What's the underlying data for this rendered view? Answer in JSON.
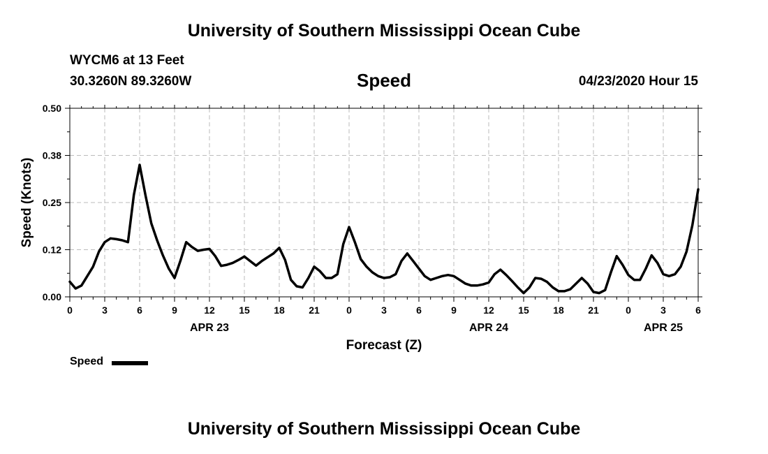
{
  "header": {
    "title": "University of Southern Mississippi Ocean Cube",
    "station": "WYCM6 at 13 Feet",
    "coordinates": "30.3260N 89.3260W",
    "variable": "Speed",
    "datetime": "04/23/2020 Hour 15"
  },
  "footer": {
    "title": "University of Southern Mississippi Ocean Cube"
  },
  "legend": {
    "label": "Speed",
    "color": "#000000"
  },
  "chart_data": {
    "type": "line",
    "title": "Speed",
    "xlabel": "Forecast (Z)",
    "ylabel": "Speed (Knots)",
    "xlim": [
      0,
      54
    ],
    "ylim": [
      0,
      0.5
    ],
    "yticks": [
      "0.00",
      "0.12",
      "0.25",
      "0.38",
      "0.50"
    ],
    "ytick_values": [
      0,
      0.125,
      0.25,
      0.375,
      0.5
    ],
    "xtick_labels": [
      "0",
      "3",
      "6",
      "9",
      "12",
      "15",
      "18",
      "21",
      "0",
      "3",
      "6",
      "9",
      "12",
      "15",
      "18",
      "21",
      "0",
      "3",
      "6"
    ],
    "date_labels": [
      {
        "label": "APR 23",
        "x": 12
      },
      {
        "label": "APR 24",
        "x": 36
      },
      {
        "label": "APR 25",
        "x": 51
      }
    ],
    "grid": true,
    "series": [
      {
        "name": "Speed",
        "color": "#000000",
        "x": [
          0,
          0.5,
          1,
          1.5,
          2,
          2.5,
          3,
          3.5,
          4,
          4.5,
          5,
          5.5,
          6,
          6.5,
          7,
          7.5,
          8,
          8.5,
          9,
          9.5,
          10,
          10.5,
          11,
          11.5,
          12,
          12.5,
          13,
          13.5,
          14,
          14.5,
          15,
          15.5,
          16,
          16.5,
          17,
          17.5,
          18,
          18.5,
          19,
          19.5,
          20,
          20.5,
          21,
          21.5,
          22,
          22.5,
          23,
          23.5,
          24,
          24.5,
          25,
          25.5,
          26,
          26.5,
          27,
          27.5,
          28,
          28.5,
          29,
          29.5,
          30,
          30.5,
          31,
          31.5,
          32,
          32.5,
          33,
          33.5,
          34,
          34.5,
          35,
          35.5,
          36,
          36.5,
          37,
          37.5,
          38,
          38.5,
          39,
          39.5,
          40,
          40.5,
          41,
          41.5,
          42,
          42.5,
          43,
          43.5,
          44,
          44.5,
          45,
          45.5,
          46,
          46.5,
          47,
          47.5,
          48,
          48.5,
          49,
          49.5,
          50,
          50.5,
          51,
          51.5,
          52,
          52.5,
          53,
          53.5,
          54
        ],
        "values": [
          0.04,
          0.022,
          0.03,
          0.055,
          0.08,
          0.12,
          0.145,
          0.155,
          0.153,
          0.15,
          0.145,
          0.27,
          0.35,
          0.27,
          0.195,
          0.15,
          0.11,
          0.075,
          0.05,
          0.095,
          0.145,
          0.132,
          0.122,
          0.125,
          0.127,
          0.108,
          0.082,
          0.085,
          0.09,
          0.098,
          0.107,
          0.095,
          0.083,
          0.095,
          0.105,
          0.115,
          0.13,
          0.098,
          0.045,
          0.028,
          0.025,
          0.05,
          0.08,
          0.068,
          0.05,
          0.05,
          0.06,
          0.14,
          0.185,
          0.145,
          0.1,
          0.08,
          0.065,
          0.055,
          0.05,
          0.052,
          0.06,
          0.095,
          0.115,
          0.095,
          0.075,
          0.055,
          0.045,
          0.05,
          0.055,
          0.058,
          0.055,
          0.045,
          0.035,
          0.03,
          0.03,
          0.033,
          0.038,
          0.06,
          0.072,
          0.058,
          0.042,
          0.025,
          0.01,
          0.025,
          0.05,
          0.048,
          0.04,
          0.025,
          0.015,
          0.015,
          0.02,
          0.035,
          0.05,
          0.035,
          0.013,
          0.01,
          0.018,
          0.065,
          0.108,
          0.085,
          0.058,
          0.045,
          0.045,
          0.075,
          0.11,
          0.09,
          0.06,
          0.055,
          0.06,
          0.08,
          0.12,
          0.19,
          0.285
        ]
      }
    ]
  }
}
